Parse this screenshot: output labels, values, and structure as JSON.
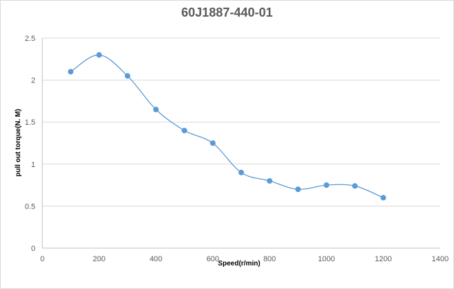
{
  "chart_data": {
    "type": "scatter",
    "title": "60J1887-440-01",
    "xlabel": "Speed(r/min)",
    "ylabel": "pull out torque(N. M)",
    "xlim": [
      0,
      1400
    ],
    "ylim": [
      0,
      2.5
    ],
    "x_ticks": [
      "0",
      "200",
      "400",
      "600",
      "800",
      "1000",
      "1200",
      "1400"
    ],
    "y_ticks": [
      "0",
      "0.5",
      "1",
      "1.5",
      "2",
      "2.5"
    ],
    "grid": "horizontal",
    "smooth_line": true,
    "marker_color": "#5b9bd5",
    "series": [
      {
        "x": [
          100,
          200,
          300,
          400,
          500,
          600,
          700,
          800,
          900,
          1000,
          1100,
          1200
        ],
        "y": [
          2.1,
          2.3,
          2.05,
          1.65,
          1.4,
          1.25,
          0.9,
          0.8,
          0.7,
          0.75,
          0.74,
          0.6
        ]
      }
    ]
  }
}
